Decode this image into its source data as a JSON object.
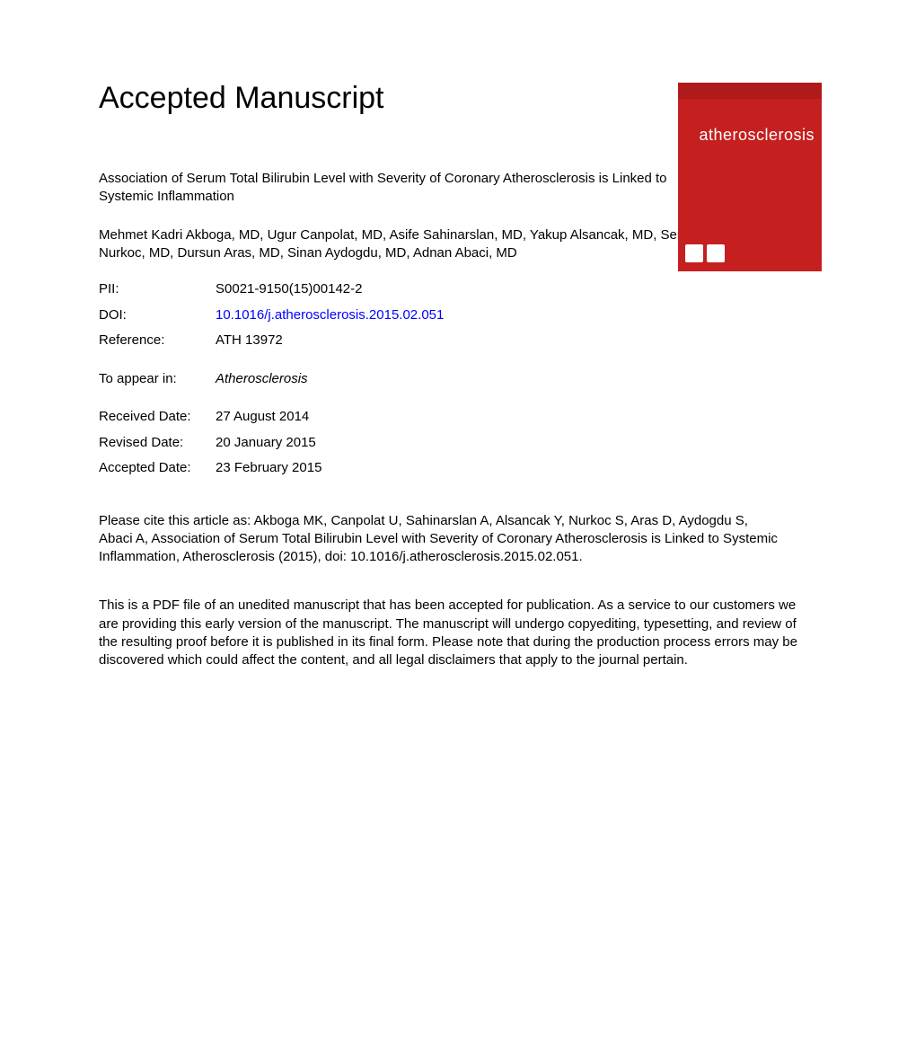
{
  "heading": "Accepted Manuscript",
  "journal_cover": {
    "name": "atherosclerosis",
    "background_color": "#c51f1f",
    "text_color": "#ffffff"
  },
  "article_title": "Association of Serum Total Bilirubin Level with Severity of Coronary Atherosclerosis is Linked to Systemic Inflammation",
  "authors": "Mehmet Kadri Akboga, MD, Ugur Canpolat, MD, Asife Sahinarslan, MD, Yakup Alsancak, MD, Serdar Nurkoc, MD, Dursun Aras, MD, Sinan Aydogdu, MD, Adnan Abaci, MD",
  "meta": {
    "pii_label": "PII:",
    "pii_value": "S0021-9150(15)00142-2",
    "doi_label": "DOI:",
    "doi_value": "10.1016/j.atherosclerosis.2015.02.051",
    "reference_label": "Reference:",
    "reference_value": "ATH 13972",
    "appear_label": "To appear in:",
    "appear_value": "Atherosclerosis",
    "received_label": "Received Date:",
    "received_value": "27 August 2014",
    "revised_label": "Revised Date:",
    "revised_value": "20 January 2015",
    "accepted_label": "Accepted Date:",
    "accepted_value": "23 February 2015"
  },
  "citation": "Please cite this article as: Akboga MK, Canpolat U, Sahinarslan A, Alsancak Y, Nurkoc S, Aras D, Aydogdu S, Abaci A, Association of Serum Total Bilirubin Level with Severity of Coronary Atherosclerosis is Linked to Systemic Inflammation, Atherosclerosis (2015), doi: 10.1016/j.atherosclerosis.2015.02.051.",
  "disclaimer": "This is a PDF file of an unedited manuscript that has been accepted for publication. As a service to our customers we are providing this early version of the manuscript. The manuscript will undergo copyediting, typesetting, and review of the resulting proof before it is published in its final form. Please note that during the production process errors may be discovered which could affect the content, and all legal disclaimers that apply to the journal pertain."
}
